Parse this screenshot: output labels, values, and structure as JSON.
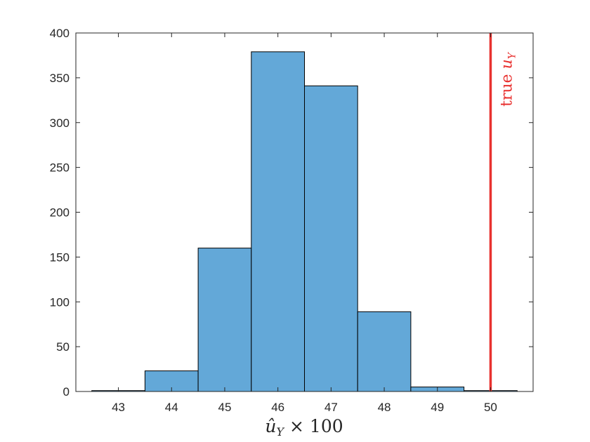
{
  "chart_data": {
    "type": "bar",
    "subtype": "histogram",
    "bin_edges": [
      42.5,
      43.5,
      44.5,
      45.5,
      46.5,
      47.5,
      48.5,
      49.5,
      50.5
    ],
    "values": [
      1,
      23,
      160,
      379,
      341,
      89,
      5,
      1
    ],
    "xlim": [
      42.2,
      50.8
    ],
    "ylim": [
      0,
      400
    ],
    "xticks": [
      43,
      44,
      45,
      46,
      47,
      48,
      49,
      50
    ],
    "yticks": [
      0,
      50,
      100,
      150,
      200,
      250,
      300,
      350,
      400
    ],
    "xlabel": {
      "symbol": "û",
      "subscript": "Y",
      "rest": "× 100"
    },
    "ylabel": "",
    "title": "",
    "grid": false,
    "bar_color": "#63a8d8",
    "bar_edge_color": "#000000",
    "reference_line": {
      "x": 50,
      "color": "#e8312f",
      "label_prefix": "true ",
      "label_symbol": "u",
      "label_subscript": "Y"
    }
  }
}
